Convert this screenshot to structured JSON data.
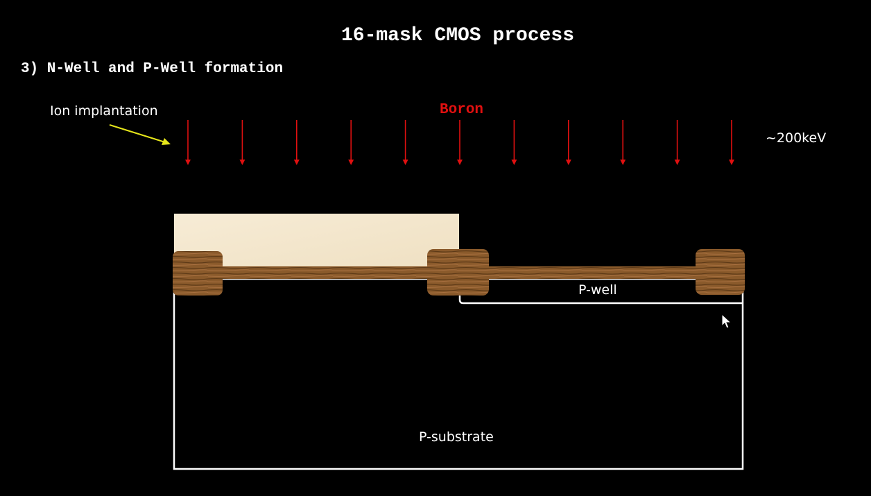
{
  "title": "16-mask CMOS process",
  "step": "3) N-Well and P-Well formation",
  "annotation": "Ion implantation",
  "dopant": "Boron",
  "energy": "~200keV",
  "regions": {
    "well": "P-well",
    "substrate": "P-substrate"
  },
  "colors": {
    "background": "#000000",
    "implant_arrows": "#e01010",
    "dopant_label": "#e01010",
    "pointer_arrow": "#e6e61a",
    "photoresist": "#f3e6cc",
    "field_oxide": "#8a5a2b",
    "outline": "#ffffff"
  },
  "implant_arrow_count": 11
}
